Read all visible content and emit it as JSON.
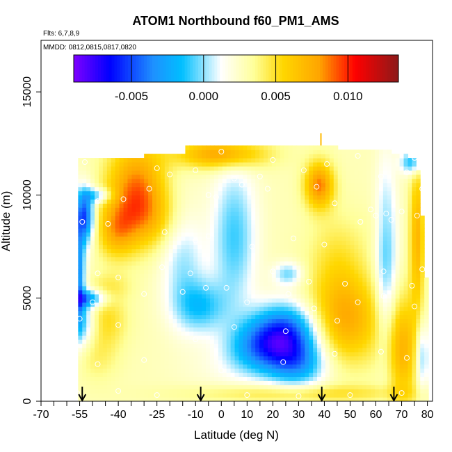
{
  "chart_data": {
    "type": "heatmap",
    "title": "ATOM1 Northbound f60_PM1_AMS",
    "annotations": {
      "flights": "Flts: 6,7,8,9",
      "dates": "MMDD: 0812,0815,0817,0820"
    },
    "xlabel": "Latitude (deg N)",
    "ylabel": "Altitude (m)",
    "xlim": [
      -70,
      82
    ],
    "ylim": [
      0,
      17500
    ],
    "x_ticks": [
      -70,
      -55,
      -40,
      -25,
      -10,
      0,
      10,
      20,
      30,
      40,
      50,
      60,
      70,
      80
    ],
    "x_tick_labels": [
      "-70",
      "-55",
      "-40",
      "-25",
      "-10",
      "0",
      "10",
      "20",
      "30",
      "40",
      "50",
      "60",
      "70",
      "80"
    ],
    "x_minor_ticks": [
      -65,
      -60,
      -50,
      -45,
      -35,
      -30,
      -20,
      -15,
      -5,
      5,
      15,
      25,
      35,
      45,
      55,
      65,
      75
    ],
    "y_ticks": [
      0,
      5000,
      10000,
      15000
    ],
    "y_tick_labels": [
      "0",
      "5000",
      "10000",
      "15000"
    ],
    "colorbar": {
      "range": [
        -0.009,
        0.0135
      ],
      "ticks": [
        -0.005,
        0.0,
        0.005,
        0.01
      ],
      "tick_labels": [
        "-0.005",
        "0.000",
        "0.005",
        "0.010"
      ],
      "colors": [
        "#7f00ff",
        "#0000ff",
        "#1e90ff",
        "#00bfff",
        "#ffffff",
        "#ffff99",
        "#ffd700",
        "#ffa500",
        "#ff0000",
        "#8b1a1a"
      ]
    },
    "flight_markers_lat": [
      -54,
      -8,
      39,
      67
    ],
    "altitude_top": [
      [
        -56,
        11800
      ],
      [
        -40,
        11800
      ],
      [
        -30,
        11900
      ],
      [
        -14,
        11900
      ],
      [
        -13,
        12400
      ],
      [
        0,
        12400
      ],
      [
        10,
        12400
      ],
      [
        20,
        12400
      ],
      [
        30,
        12400
      ],
      [
        39,
        12500
      ],
      [
        45,
        12300
      ],
      [
        55,
        12200
      ],
      [
        66,
        12100
      ],
      [
        72,
        11900
      ],
      [
        76,
        11800
      ],
      [
        77,
        10500
      ],
      [
        78,
        9000
      ],
      [
        79,
        7000
      ],
      [
        80,
        5500
      ],
      [
        80,
        1000
      ],
      [
        79,
        0
      ]
    ],
    "altitude_left": [
      [
        -56,
        11800
      ],
      [
        -58,
        11200
      ],
      [
        -59,
        10700
      ],
      [
        -60,
        9500
      ],
      [
        -60,
        7000
      ],
      [
        -61,
        5500
      ],
      [
        -61,
        3800
      ],
      [
        -59,
        2800
      ],
      [
        -57,
        1500
      ],
      [
        -56,
        800
      ],
      [
        -55,
        0
      ]
    ],
    "anomalies": [
      {
        "lat": 25,
        "alt": 3300,
        "value": -0.006,
        "sx": 9,
        "sy": 1000
      },
      {
        "lat": 15,
        "alt": 2600,
        "value": -0.003,
        "sx": 9,
        "sy": 900
      },
      {
        "lat": 30,
        "alt": 1800,
        "value": -0.003,
        "sx": 8,
        "sy": 800
      },
      {
        "lat": -57,
        "alt": 6200,
        "value": -0.007,
        "sx": 2.5,
        "sy": 1800
      },
      {
        "lat": -53,
        "alt": 9000,
        "value": -0.006,
        "sx": 2.5,
        "sy": 900
      },
      {
        "lat": -52,
        "alt": 5000,
        "value": -0.004,
        "sx": 5,
        "sy": 300
      },
      {
        "lat": -54,
        "alt": 3800,
        "value": -0.002,
        "sx": 4,
        "sy": 800
      },
      {
        "lat": -48,
        "alt": 10000,
        "value": -0.002,
        "sx": 4,
        "sy": 250
      },
      {
        "lat": -8,
        "alt": 4600,
        "value": -0.002,
        "sx": 7,
        "sy": 900
      },
      {
        "lat": 26,
        "alt": 6200,
        "value": -0.0015,
        "sx": 4,
        "sy": 400
      },
      {
        "lat": 74,
        "alt": 11600,
        "value": -0.003,
        "sx": 3,
        "sy": 400
      },
      {
        "lat": 78,
        "alt": 2200,
        "value": -0.002,
        "sx": 2,
        "sy": 1200
      },
      {
        "lat": -33,
        "alt": 10300,
        "value": 0.0075,
        "sx": 8,
        "sy": 1600
      },
      {
        "lat": -28,
        "alt": 8800,
        "value": 0.004,
        "sx": 10,
        "sy": 1000
      },
      {
        "lat": -41,
        "alt": 8200,
        "value": 0.005,
        "sx": 5,
        "sy": 900
      },
      {
        "lat": -43,
        "alt": 5600,
        "value": 0.003,
        "sx": 6,
        "sy": 500
      },
      {
        "lat": -45,
        "alt": 4000,
        "value": 0.004,
        "sx": 6,
        "sy": 900
      },
      {
        "lat": -48,
        "alt": 2200,
        "value": 0.003,
        "sx": 6,
        "sy": 900
      },
      {
        "lat": 0,
        "alt": 12000,
        "value": 0.007,
        "sx": 12,
        "sy": 500
      },
      {
        "lat": 38,
        "alt": 10500,
        "value": 0.0075,
        "sx": 4,
        "sy": 800
      },
      {
        "lat": 45,
        "alt": 7000,
        "value": 0.0035,
        "sx": 8,
        "sy": 1500
      },
      {
        "lat": 48,
        "alt": 4000,
        "value": 0.0065,
        "sx": 10,
        "sy": 1500
      },
      {
        "lat": 70,
        "alt": 2500,
        "value": 0.006,
        "sx": 5,
        "sy": 1800
      },
      {
        "lat": 60,
        "alt": 8500,
        "value": 0.002,
        "sx": 4,
        "sy": 800
      },
      {
        "lat": 5,
        "alt": 8000,
        "value": -0.002,
        "sx": 6,
        "sy": 2500
      },
      {
        "lat": -15,
        "alt": 7000,
        "value": -0.001,
        "sx": 6,
        "sy": 2000
      },
      {
        "lat": 64,
        "alt": 6500,
        "value": -0.002,
        "sx": 3,
        "sy": 3500
      },
      {
        "lat": 76,
        "alt": 8000,
        "value": 0.006,
        "sx": 2,
        "sy": 2500
      },
      {
        "lat": 0,
        "alt": 1600,
        "value": 0.001,
        "sx": 12,
        "sy": 900
      },
      {
        "lat": 30,
        "alt": 400,
        "value": 0.004,
        "sx": 30,
        "sy": 300
      }
    ],
    "sample_points": [
      [
        -53,
        11600
      ],
      [
        -25,
        11300
      ],
      [
        0,
        12100
      ],
      [
        20,
        11700
      ],
      [
        41,
        11500
      ],
      [
        53,
        11900
      ],
      [
        75,
        11800
      ],
      [
        -20,
        11000
      ],
      [
        -10,
        11200
      ],
      [
        5,
        10800
      ],
      [
        15,
        10900
      ],
      [
        32,
        11200
      ],
      [
        62,
        10900
      ],
      [
        72,
        11100
      ],
      [
        -48,
        9700
      ],
      [
        -38,
        9800
      ],
      [
        -28,
        10300
      ],
      [
        -5,
        10000
      ],
      [
        -2,
        9900
      ],
      [
        8,
        10500
      ],
      [
        18,
        10300
      ],
      [
        37,
        10400
      ],
      [
        44,
        9600
      ],
      [
        58,
        9300
      ],
      [
        70,
        9200
      ],
      [
        76,
        9000
      ],
      [
        78,
        10300
      ],
      [
        -54,
        8700
      ],
      [
        -44,
        8600
      ],
      [
        -22,
        8200
      ],
      [
        -10,
        7800
      ],
      [
        -5,
        8000
      ],
      [
        12,
        7500
      ],
      [
        28,
        7900
      ],
      [
        40,
        7600
      ],
      [
        54,
        8700
      ],
      [
        60,
        9000
      ],
      [
        64,
        9100
      ],
      [
        66,
        8800
      ],
      [
        -62,
        6000
      ],
      [
        -48,
        6200
      ],
      [
        -40,
        6000
      ],
      [
        -23,
        6500
      ],
      [
        -12,
        6200
      ],
      [
        2,
        5500
      ],
      [
        20,
        6300
      ],
      [
        34,
        5800
      ],
      [
        48,
        5700
      ],
      [
        63,
        6300
      ],
      [
        74,
        5600
      ],
      [
        78,
        6400
      ],
      [
        -62,
        4900
      ],
      [
        -50,
        4800
      ],
      [
        -30,
        5200
      ],
      [
        -15,
        5300
      ],
      [
        -6,
        5500
      ],
      [
        10,
        4800
      ],
      [
        26,
        5200
      ],
      [
        36,
        4500
      ],
      [
        53,
        4800
      ],
      [
        63,
        5100
      ],
      [
        75,
        4600
      ],
      [
        -55,
        4000
      ],
      [
        -40,
        3700
      ],
      [
        -10,
        3000
      ],
      [
        5,
        3600
      ],
      [
        25,
        3400
      ],
      [
        45,
        3900
      ],
      [
        72,
        2100
      ],
      [
        -48,
        1800
      ],
      [
        -30,
        2000
      ],
      [
        0,
        1500
      ],
      [
        24,
        1900
      ],
      [
        44,
        2300
      ],
      [
        62,
        2400
      ],
      [
        -56,
        400
      ],
      [
        -40,
        500
      ],
      [
        -25,
        300
      ],
      [
        -8,
        200
      ],
      [
        10,
        300
      ],
      [
        30,
        250
      ],
      [
        50,
        300
      ],
      [
        70,
        400
      ]
    ]
  }
}
